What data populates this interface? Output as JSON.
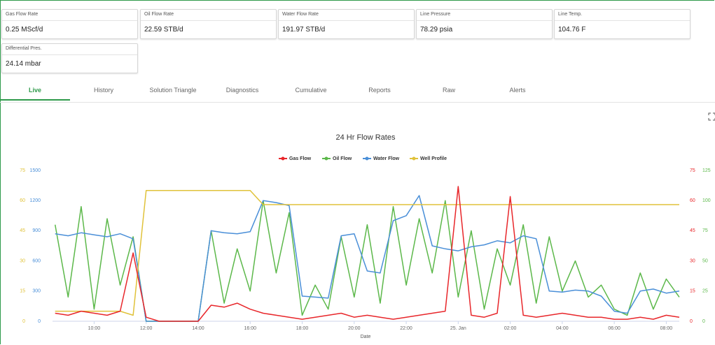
{
  "cards": [
    {
      "label": "Gas Flow Rate",
      "value": "0.25 MScf/d"
    },
    {
      "label": "Oil Flow Rate",
      "value": "22.59 STB/d"
    },
    {
      "label": "Water Flow Rate",
      "value": "191.97 STB/d"
    },
    {
      "label": "Line Pressure",
      "value": "78.29 psia"
    },
    {
      "label": "Line Temp.",
      "value": "104.76 F"
    },
    {
      "label": "Differential Pres.",
      "value": "24.14 mbar"
    }
  ],
  "tabs": [
    "Live",
    "History",
    "Solution Triangle",
    "Diagnostics",
    "Cumulative",
    "Reports",
    "Raw",
    "Alerts"
  ],
  "chart_data": {
    "type": "line",
    "title": "24 Hr Flow Rates",
    "x_label": "Date",
    "x": [
      8.5,
      9,
      9.5,
      10,
      10.5,
      11,
      11.5,
      12,
      12.5,
      13,
      13.5,
      14,
      14.5,
      15,
      15.5,
      16,
      16.5,
      17,
      17.5,
      18,
      18.5,
      19,
      19.5,
      20,
      20.5,
      21,
      21.5,
      22,
      22.5,
      23,
      23.5,
      24,
      24.5,
      25,
      25.5,
      26,
      26.5,
      27,
      27.5,
      28,
      28.5,
      29,
      29.5,
      30,
      30.5,
      31,
      31.5,
      32,
      32.5
    ],
    "xlim": [
      8.4,
      32.5
    ],
    "xticks": [
      {
        "value": 10,
        "label": "10:00"
      },
      {
        "value": 12,
        "label": "12:00"
      },
      {
        "value": 14,
        "label": "14:00"
      },
      {
        "value": 16,
        "label": "16:00"
      },
      {
        "value": 18,
        "label": "18:00"
      },
      {
        "value": 20,
        "label": "20:00"
      },
      {
        "value": 22,
        "label": "22:00"
      },
      {
        "value": 24,
        "label": "25. Jan"
      },
      {
        "value": 26,
        "label": "02:00"
      },
      {
        "value": 28,
        "label": "04:00"
      },
      {
        "value": 30,
        "label": "06:00"
      },
      {
        "value": 32,
        "label": "08:00"
      }
    ],
    "ylim": [
      0,
      1500
    ],
    "yticks": [
      0,
      300,
      600,
      900,
      1200,
      1500
    ],
    "y2lim": [
      0,
      125
    ],
    "y2ticks": [
      0,
      25,
      50,
      75,
      100,
      125
    ],
    "y3lim": [
      0,
      75
    ],
    "y3ticks": [
      0,
      15,
      30,
      45,
      60,
      75
    ],
    "y4lim": [
      0,
      75
    ],
    "y4ticks": [
      0,
      15,
      30,
      45,
      60,
      75
    ],
    "series": [
      {
        "name": "Gas Flow",
        "color": "#e8262a",
        "axis": "y4",
        "values": [
          4,
          3,
          5,
          4,
          3,
          5,
          34,
          2,
          0,
          0,
          0,
          0,
          8,
          7,
          9,
          6,
          4,
          3,
          2,
          1,
          2,
          3,
          4,
          2,
          3,
          2,
          1,
          2,
          3,
          4,
          5,
          67,
          3,
          2,
          4,
          62,
          3,
          2,
          3,
          4,
          3,
          2,
          2,
          1,
          1,
          2,
          1,
          3,
          2
        ]
      },
      {
        "name": "Oil Flow",
        "color": "#5cb84a",
        "axis": "y2",
        "values": [
          80,
          20,
          95,
          10,
          85,
          30,
          70,
          0,
          0,
          0,
          0,
          0,
          75,
          15,
          60,
          25,
          100,
          40,
          90,
          5,
          30,
          10,
          70,
          20,
          80,
          15,
          95,
          30,
          85,
          40,
          100,
          20,
          75,
          10,
          60,
          30,
          80,
          15,
          70,
          25,
          50,
          20,
          30,
          10,
          5,
          40,
          10,
          35,
          20
        ]
      },
      {
        "name": "Water Flow",
        "color": "#4a8fd8",
        "axis": "y",
        "values": [
          870,
          850,
          880,
          860,
          840,
          870,
          820,
          0,
          0,
          0,
          0,
          0,
          900,
          880,
          870,
          890,
          1200,
          1180,
          1150,
          250,
          240,
          230,
          850,
          870,
          500,
          480,
          1000,
          1050,
          1250,
          750,
          720,
          700,
          740,
          760,
          800,
          780,
          850,
          820,
          300,
          290,
          310,
          300,
          250,
          100,
          80,
          300,
          320,
          280,
          300
        ]
      },
      {
        "name": "Well Profile",
        "color": "#e0c23a",
        "axis": "y3",
        "values": [
          5,
          5,
          5,
          5,
          5,
          5,
          3,
          65,
          65,
          65,
          65,
          65,
          65,
          65,
          65,
          65,
          58,
          58,
          58,
          58,
          58,
          58,
          58,
          58,
          58,
          58,
          58,
          58,
          58,
          58,
          58,
          58,
          58,
          58,
          58,
          58,
          58,
          58,
          58,
          58,
          58,
          58,
          58,
          58,
          58,
          58,
          58,
          58,
          58
        ]
      }
    ]
  }
}
